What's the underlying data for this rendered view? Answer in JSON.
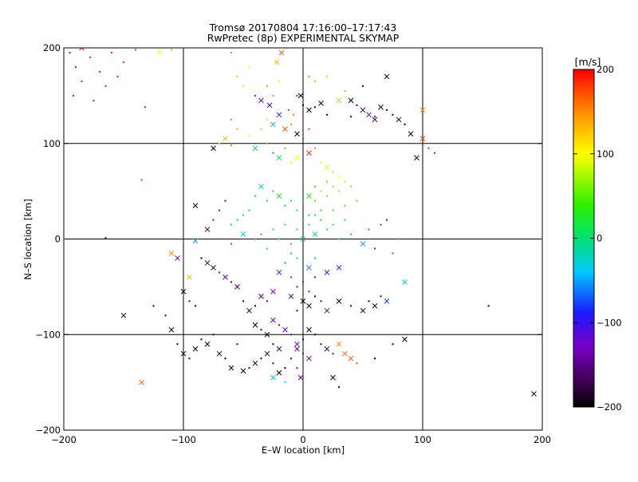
{
  "chart_data": {
    "type": "scatter",
    "title_line1": "Tromsø 20170804 17:16:00–17:17:43",
    "title_line2": "RwPretec (8p) EXPERIMENTAL SKYMAP",
    "xlabel": "E–W location [km]",
    "ylabel": "N–S location [km]",
    "xlim": [
      -200,
      200
    ],
    "ylim": [
      -200,
      200
    ],
    "x_ticks": [
      "−200",
      "−100",
      "0",
      "100",
      "200"
    ],
    "x_tick_values": [
      -200,
      -100,
      0,
      100,
      200
    ],
    "y_ticks": [
      "−200",
      "−100",
      "0",
      "100",
      "200"
    ],
    "y_tick_values": [
      -200,
      -100,
      0,
      100,
      200
    ],
    "grid": true,
    "colorbar": {
      "label": "[m/s]",
      "range": [
        -200,
        200
      ],
      "ticks": [
        "200",
        "100",
        "0",
        "−100",
        "−200"
      ],
      "tick_values": [
        200,
        100,
        0,
        -100,
        -200
      ],
      "colormap": "rainbow (black→purple→blue→cyan→green→yellow→red)"
    },
    "markers": {
      "small": "dot",
      "large": "x"
    },
    "points": [
      [
        -195,
        195,
        200,
        0
      ],
      [
        -190,
        180,
        195,
        0
      ],
      [
        -185,
        165,
        190,
        0
      ],
      [
        -192,
        150,
        200,
        0
      ],
      [
        -178,
        190,
        185,
        0
      ],
      [
        -170,
        175,
        195,
        0
      ],
      [
        -165,
        160,
        190,
        0
      ],
      [
        -175,
        145,
        200,
        0
      ],
      [
        -160,
        195,
        190,
        0
      ],
      [
        -150,
        185,
        180,
        0
      ],
      [
        -140,
        198,
        175,
        0
      ],
      [
        -155,
        170,
        195,
        0
      ],
      [
        -185,
        200,
        200,
        1
      ],
      [
        -132,
        138,
        190,
        0
      ],
      [
        -120,
        195,
        100,
        1
      ],
      [
        -110,
        198,
        60,
        0
      ],
      [
        -100,
        200,
        40,
        0
      ],
      [
        -60,
        195,
        150,
        0
      ],
      [
        -55,
        170,
        130,
        0
      ],
      [
        -50,
        160,
        120,
        0
      ],
      [
        -45,
        180,
        100,
        0
      ],
      [
        -40,
        150,
        -80,
        0
      ],
      [
        -35,
        145,
        -120,
        1
      ],
      [
        -30,
        160,
        50,
        0
      ],
      [
        -25,
        150,
        20,
        0
      ],
      [
        -20,
        165,
        110,
        0
      ],
      [
        -22,
        185,
        130,
        1
      ],
      [
        -18,
        195,
        170,
        1
      ],
      [
        -28,
        140,
        -150,
        1
      ],
      [
        -12,
        135,
        180,
        0
      ],
      [
        -8,
        130,
        160,
        0
      ],
      [
        -5,
        150,
        200,
        0
      ],
      [
        5,
        170,
        30,
        0
      ],
      [
        10,
        165,
        60,
        0
      ],
      [
        20,
        170,
        80,
        0
      ],
      [
        -2,
        150,
        -200,
        1
      ],
      [
        0,
        140,
        -190,
        0
      ],
      [
        5,
        135,
        -200,
        1
      ],
      [
        10,
        138,
        -180,
        0
      ],
      [
        15,
        142,
        -200,
        1
      ],
      [
        20,
        130,
        -190,
        0
      ],
      [
        40,
        145,
        -200,
        1
      ],
      [
        45,
        140,
        -180,
        0
      ],
      [
        50,
        135,
        -160,
        1
      ],
      [
        55,
        130,
        -150,
        1
      ],
      [
        60,
        128,
        -160,
        0
      ],
      [
        65,
        138,
        -200,
        1
      ],
      [
        70,
        135,
        -190,
        0
      ],
      [
        75,
        130,
        -180,
        0
      ],
      [
        80,
        125,
        -200,
        1
      ],
      [
        85,
        120,
        -200,
        0
      ],
      [
        90,
        110,
        -200,
        1
      ],
      [
        70,
        170,
        -200,
        1
      ],
      [
        50,
        160,
        -180,
        0
      ],
      [
        35,
        155,
        50,
        0
      ],
      [
        30,
        145,
        70,
        1
      ],
      [
        40,
        128,
        -180,
        0
      ],
      [
        60,
        125,
        -190,
        1
      ],
      [
        100,
        135,
        150,
        1
      ],
      [
        100,
        105,
        180,
        1
      ],
      [
        105,
        95,
        190,
        0
      ],
      [
        110,
        90,
        200,
        0
      ],
      [
        95,
        85,
        -200,
        1
      ],
      [
        -60,
        125,
        150,
        0
      ],
      [
        -55,
        115,
        140,
        0
      ],
      [
        -65,
        105,
        130,
        1
      ],
      [
        -60,
        98,
        160,
        0
      ],
      [
        -70,
        100,
        120,
        0
      ],
      [
        -75,
        95,
        -200,
        1
      ],
      [
        -45,
        108,
        100,
        0
      ],
      [
        -40,
        95,
        -40,
        1
      ],
      [
        -30,
        100,
        30,
        0
      ],
      [
        -25,
        90,
        -60,
        0
      ],
      [
        -20,
        85,
        10,
        1
      ],
      [
        -15,
        95,
        40,
        0
      ],
      [
        -10,
        80,
        90,
        0
      ],
      [
        -5,
        85,
        100,
        1
      ],
      [
        -35,
        115,
        60,
        0
      ],
      [
        -30,
        125,
        90,
        0
      ],
      [
        -25,
        120,
        -50,
        1
      ],
      [
        -20,
        130,
        -100,
        1
      ],
      [
        -15,
        115,
        170,
        1
      ],
      [
        -10,
        120,
        150,
        0
      ],
      [
        5,
        115,
        180,
        0
      ],
      [
        0,
        105,
        190,
        0
      ],
      [
        -5,
        110,
        -200,
        1
      ],
      [
        5,
        90,
        185,
        1
      ],
      [
        10,
        95,
        150,
        0
      ],
      [
        15,
        80,
        110,
        0
      ],
      [
        20,
        75,
        90,
        1
      ],
      [
        25,
        70,
        70,
        0
      ],
      [
        30,
        65,
        100,
        0
      ],
      [
        35,
        60,
        80,
        0
      ],
      [
        25,
        55,
        60,
        0
      ],
      [
        20,
        60,
        50,
        0
      ],
      [
        15,
        50,
        70,
        0
      ],
      [
        10,
        55,
        40,
        0
      ],
      [
        5,
        45,
        30,
        1
      ],
      [
        0,
        40,
        20,
        0
      ],
      [
        10,
        40,
        50,
        0
      ],
      [
        20,
        45,
        60,
        0
      ],
      [
        30,
        50,
        70,
        0
      ],
      [
        40,
        55,
        60,
        0
      ],
      [
        45,
        40,
        50,
        0
      ],
      [
        35,
        35,
        40,
        0
      ],
      [
        25,
        30,
        30,
        0
      ],
      [
        15,
        30,
        20,
        0
      ],
      [
        5,
        25,
        10,
        0
      ],
      [
        -5,
        30,
        10,
        0
      ],
      [
        -10,
        40,
        20,
        0
      ],
      [
        -15,
        35,
        -10,
        0
      ],
      [
        -20,
        45,
        20,
        1
      ],
      [
        -25,
        50,
        -20,
        0
      ],
      [
        -30,
        40,
        10,
        0
      ],
      [
        -35,
        55,
        -30,
        1
      ],
      [
        -40,
        45,
        0,
        0
      ],
      [
        -45,
        30,
        -50,
        0
      ],
      [
        -50,
        25,
        -20,
        0
      ],
      [
        -55,
        20,
        0,
        0
      ],
      [
        -60,
        15,
        -40,
        0
      ],
      [
        -65,
        40,
        -150,
        0
      ],
      [
        -70,
        30,
        -130,
        0
      ],
      [
        -75,
        20,
        -100,
        0
      ],
      [
        -80,
        10,
        -150,
        1
      ],
      [
        -60,
        -5,
        -60,
        0
      ],
      [
        -50,
        5,
        -40,
        1
      ],
      [
        -40,
        0,
        -20,
        0
      ],
      [
        -30,
        -10,
        -10,
        0
      ],
      [
        -20,
        0,
        0,
        0
      ],
      [
        -10,
        -5,
        -20,
        0
      ],
      [
        0,
        0,
        0,
        1
      ],
      [
        10,
        5,
        10,
        1
      ],
      [
        20,
        10,
        20,
        0
      ],
      [
        30,
        0,
        -10,
        0
      ],
      [
        40,
        5,
        -30,
        0
      ],
      [
        50,
        -5,
        -50,
        1
      ],
      [
        55,
        10,
        -60,
        0
      ],
      [
        60,
        -10,
        -80,
        0
      ],
      [
        65,
        15,
        -70,
        0
      ],
      [
        70,
        20,
        -90,
        0
      ],
      [
        75,
        -15,
        -60,
        0
      ],
      [
        80,
        0,
        -50,
        0
      ],
      [
        -5,
        10,
        -20,
        0
      ],
      [
        5,
        15,
        0,
        0
      ],
      [
        15,
        20,
        10,
        0
      ],
      [
        25,
        15,
        5,
        0
      ],
      [
        35,
        20,
        -10,
        0
      ],
      [
        -15,
        15,
        -10,
        0
      ],
      [
        -25,
        10,
        -30,
        0
      ],
      [
        -35,
        5,
        -50,
        0
      ],
      [
        0,
        20,
        10,
        0
      ],
      [
        10,
        25,
        20,
        0
      ],
      [
        -10,
        -15,
        -30,
        0
      ],
      [
        -5,
        -20,
        -40,
        0
      ],
      [
        0,
        -25,
        -50,
        0
      ],
      [
        5,
        -30,
        -60,
        1
      ],
      [
        10,
        -20,
        -40,
        0
      ],
      [
        -15,
        -25,
        -60,
        0
      ],
      [
        -20,
        -35,
        -80,
        1
      ],
      [
        -10,
        -40,
        -70,
        0
      ],
      [
        0,
        -45,
        -80,
        0
      ],
      [
        10,
        -40,
        -90,
        0
      ],
      [
        20,
        -35,
        -100,
        1
      ],
      [
        30,
        -30,
        -110,
        1
      ],
      [
        -5,
        -50,
        -100,
        0
      ],
      [
        5,
        -55,
        -120,
        0
      ],
      [
        -10,
        -60,
        -150,
        1
      ],
      [
        0,
        -65,
        -200,
        1
      ],
      [
        10,
        -60,
        -190,
        0
      ],
      [
        5,
        -70,
        -200,
        1
      ],
      [
        -5,
        -75,
        -180,
        0
      ],
      [
        15,
        -65,
        -170,
        0
      ],
      [
        20,
        -75,
        -160,
        1
      ],
      [
        30,
        -65,
        -200,
        1
      ],
      [
        40,
        -70,
        -180,
        0
      ],
      [
        50,
        -75,
        -200,
        1
      ],
      [
        55,
        -65,
        -190,
        0
      ],
      [
        60,
        -70,
        -200,
        1
      ],
      [
        65,
        -60,
        -180,
        0
      ],
      [
        70,
        -65,
        -80,
        1
      ],
      [
        85,
        -45,
        -40,
        1
      ],
      [
        -25,
        -55,
        -120,
        1
      ],
      [
        -30,
        -65,
        -140,
        0
      ],
      [
        -35,
        -60,
        -160,
        1
      ],
      [
        -40,
        -70,
        -190,
        0
      ],
      [
        -45,
        -75,
        -200,
        1
      ],
      [
        -50,
        -65,
        -180,
        0
      ],
      [
        -55,
        -50,
        -170,
        1
      ],
      [
        -60,
        -45,
        -150,
        0
      ],
      [
        -65,
        -40,
        -140,
        1
      ],
      [
        -70,
        -35,
        -120,
        0
      ],
      [
        -75,
        -30,
        -200,
        1
      ],
      [
        -80,
        -25,
        -180,
        1
      ],
      [
        -85,
        -20,
        -200,
        0
      ],
      [
        -90,
        -70,
        -190,
        0
      ],
      [
        -95,
        -65,
        -180,
        0
      ],
      [
        -100,
        -55,
        -200,
        1
      ],
      [
        -105,
        -20,
        -150,
        1
      ],
      [
        -110,
        -15,
        150,
        1
      ],
      [
        -95,
        -40,
        130,
        1
      ],
      [
        -90,
        -2,
        -50,
        1
      ],
      [
        -150,
        -80,
        -200,
        1
      ],
      [
        -135,
        -150,
        160,
        1
      ],
      [
        -135,
        62,
        180,
        0
      ],
      [
        -90,
        35,
        -200,
        1
      ],
      [
        -165,
        1,
        -200,
        0
      ],
      [
        -40,
        -90,
        -200,
        1
      ],
      [
        -35,
        -95,
        -180,
        0
      ],
      [
        -30,
        -100,
        -200,
        1
      ],
      [
        -25,
        -110,
        -190,
        0
      ],
      [
        -20,
        -115,
        -170,
        1
      ],
      [
        -30,
        -120,
        -200,
        1
      ],
      [
        -35,
        -125,
        -190,
        0
      ],
      [
        -40,
        -130,
        -200,
        1
      ],
      [
        -45,
        -135,
        -180,
        0
      ],
      [
        -50,
        -138,
        -200,
        1
      ],
      [
        -25,
        -130,
        -180,
        0
      ],
      [
        -20,
        -140,
        -200,
        1
      ],
      [
        -15,
        -135,
        -190,
        0
      ],
      [
        -10,
        -125,
        -150,
        0
      ],
      [
        -5,
        -115,
        -140,
        1
      ],
      [
        0,
        -120,
        -130,
        0
      ],
      [
        5,
        -125,
        -150,
        1
      ],
      [
        -5,
        -135,
        -140,
        0
      ],
      [
        -2,
        -145,
        -150,
        1
      ],
      [
        0,
        -105,
        -180,
        0
      ],
      [
        5,
        -95,
        -200,
        1
      ],
      [
        10,
        -100,
        -190,
        0
      ],
      [
        15,
        -110,
        -180,
        0
      ],
      [
        20,
        -115,
        -170,
        1
      ],
      [
        25,
        -120,
        -160,
        0
      ],
      [
        30,
        -110,
        150,
        1
      ],
      [
        35,
        -120,
        160,
        1
      ],
      [
        40,
        -125,
        170,
        1
      ],
      [
        45,
        -130,
        180,
        0
      ],
      [
        -25,
        -85,
        -120,
        1
      ],
      [
        -20,
        -90,
        -110,
        0
      ],
      [
        -15,
        -95,
        -100,
        1
      ],
      [
        -10,
        -100,
        -90,
        0
      ],
      [
        -5,
        -110,
        -120,
        1
      ],
      [
        -25,
        -145,
        -30,
        1
      ],
      [
        -15,
        -150,
        -40,
        0
      ],
      [
        25,
        -145,
        -200,
        1
      ],
      [
        30,
        -155,
        -190,
        0
      ],
      [
        60,
        -125,
        -200,
        0
      ],
      [
        75,
        -110,
        -200,
        0
      ],
      [
        85,
        -105,
        -190,
        1
      ],
      [
        155,
        -70,
        -200,
        0
      ],
      [
        193,
        -162,
        -200,
        1
      ],
      [
        -125,
        -70,
        -200,
        0
      ],
      [
        -115,
        -80,
        -190,
        0
      ],
      [
        -110,
        -95,
        -200,
        1
      ],
      [
        -105,
        -110,
        -190,
        0
      ],
      [
        -100,
        -120,
        -200,
        1
      ],
      [
        -95,
        -125,
        -180,
        0
      ],
      [
        -90,
        -115,
        -200,
        1
      ],
      [
        -85,
        -105,
        -190,
        0
      ],
      [
        -80,
        -110,
        -200,
        1
      ],
      [
        -75,
        -100,
        -180,
        0
      ],
      [
        -70,
        -120,
        -190,
        1
      ],
      [
        -65,
        -125,
        -200,
        0
      ],
      [
        -60,
        -135,
        -200,
        1
      ],
      [
        -55,
        -110,
        -180,
        0
      ]
    ]
  }
}
